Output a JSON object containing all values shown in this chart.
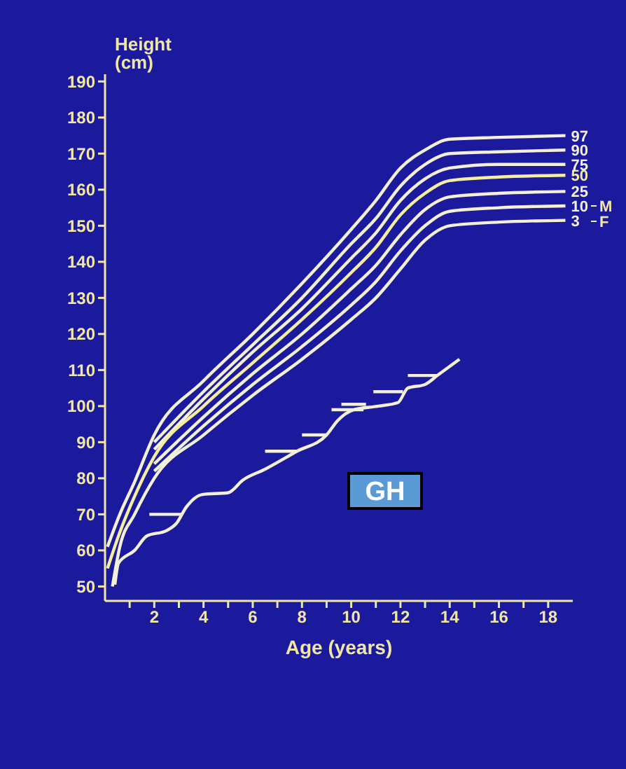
{
  "chart_data": {
    "type": "line",
    "xlabel": "Age (years)",
    "ylabel": "Height (cm)",
    "xlim": [
      0,
      19
    ],
    "ylim": [
      46,
      192
    ],
    "xticks": [
      {
        "value": 1,
        "label": null
      },
      2,
      {
        "value": 3,
        "label": null
      },
      4,
      {
        "value": 5,
        "label": null
      },
      6,
      {
        "value": 7,
        "label": null
      },
      8,
      {
        "value": 9,
        "label": null
      },
      10,
      {
        "value": 11,
        "label": null
      },
      12,
      {
        "value": 13,
        "label": null
      },
      14,
      {
        "value": 15,
        "label": null
      },
      16,
      {
        "value": 17,
        "label": null
      },
      18
    ],
    "yticks": [
      50,
      60,
      70,
      80,
      90,
      100,
      110,
      120,
      130,
      140,
      150,
      160,
      170,
      180,
      190
    ],
    "series": [
      {
        "name": "97",
        "color": "#f2f0d8",
        "x": [
          0.1,
          0.6,
          1.2,
          2,
          4,
          6,
          8,
          10,
          11,
          12,
          13,
          14,
          16,
          18.7
        ],
        "values": [
          61,
          70,
          79,
          92,
          107,
          120,
          134,
          149,
          157,
          166,
          171,
          174,
          174.5,
          175
        ]
      },
      {
        "name": "90",
        "color": "#f2f0d8",
        "x": [
          2,
          4,
          6,
          8,
          10,
          11,
          12,
          13,
          14,
          16,
          18.7
        ],
        "values": [
          90,
          104,
          117,
          130,
          145,
          152,
          161,
          167,
          170,
          170.5,
          171
        ]
      },
      {
        "name": "75",
        "color": "#f2f0d8",
        "x": [
          2,
          4,
          6,
          8,
          10,
          11,
          12,
          13,
          14,
          16,
          18.7
        ],
        "values": [
          88,
          102,
          115,
          127,
          141,
          148,
          157,
          163,
          166,
          167,
          167
        ]
      },
      {
        "name": "50",
        "color": "#f5eea0",
        "x": [
          0.1,
          0.6,
          1.2,
          2,
          4,
          6,
          8,
          10,
          11,
          12,
          13,
          14,
          16,
          18.7
        ],
        "values": [
          55,
          65,
          75,
          86,
          100,
          112,
          124,
          137,
          144,
          153,
          159,
          162.5,
          163.5,
          164
        ]
      },
      {
        "name": "25",
        "color": "#f2f0d8",
        "x": [
          2,
          4,
          6,
          8,
          10,
          11,
          12,
          13,
          14,
          16,
          18.7
        ],
        "values": [
          84,
          97,
          109,
          120,
          132.5,
          139,
          147.5,
          154.5,
          158,
          159,
          159.5
        ]
      },
      {
        "name": "10",
        "color": "#f2f0d8",
        "x": [
          2,
          4,
          6,
          8,
          10,
          11,
          12,
          13,
          14,
          16,
          18.7
        ],
        "values": [
          82,
          94.5,
          106,
          116.5,
          128,
          134.5,
          143,
          150,
          154,
          155,
          155.5
        ]
      },
      {
        "name": "3",
        "color": "#f2f0d8",
        "x": [
          0.3,
          0.6,
          1.2,
          2,
          4,
          6,
          8,
          10,
          11,
          12,
          13,
          14,
          16,
          18.7
        ],
        "values": [
          50,
          61,
          70,
          80,
          92,
          103,
          113,
          124,
          130,
          138,
          146,
          150,
          151,
          151.5
        ]
      },
      {
        "color": "#f2f0d8",
        "x": [
          0.4,
          0.55,
          1.2,
          1.7,
          2.5,
          2.9,
          3.3,
          3.95,
          5,
          5.6,
          6.5,
          7.8,
          9,
          9.45,
          10.1,
          11.1,
          11.9,
          12.3,
          13,
          13.5,
          14.4
        ],
        "values": [
          50.5,
          56.5,
          60,
          64,
          65.5,
          67.5,
          72,
          75.5,
          76,
          79.5,
          82.5,
          87.5,
          92,
          96,
          99,
          100,
          101,
          105,
          106,
          108.5,
          113
        ]
      },
      {
        "color": "#f2f0d8",
        "x": [
          1.8,
          3.1
        ],
        "values": [
          70,
          70
        ]
      },
      {
        "color": "#f2f0d8",
        "x": [
          6.5,
          7.8
        ],
        "values": [
          87.5,
          87.5
        ]
      },
      {
        "color": "#f2f0d8",
        "x": [
          8,
          9
        ],
        "values": [
          92,
          92
        ]
      },
      {
        "color": "#f2f0d8",
        "x": [
          9.2,
          10.5
        ],
        "values": [
          99,
          99
        ]
      },
      {
        "color": "#f2f0d8",
        "x": [
          9.6,
          10.6
        ],
        "values": [
          100.5,
          100.5
        ]
      },
      {
        "color": "#f2f0d8",
        "x": [
          10.9,
          12.1
        ],
        "values": [
          104,
          104
        ]
      },
      {
        "color": "#f2f0d8",
        "x": [
          12.3,
          13.5
        ],
        "values": [
          108.5,
          108.5
        ]
      }
    ],
    "annotations": [
      "GH",
      "M",
      "F"
    ],
    "legend": "right"
  }
}
